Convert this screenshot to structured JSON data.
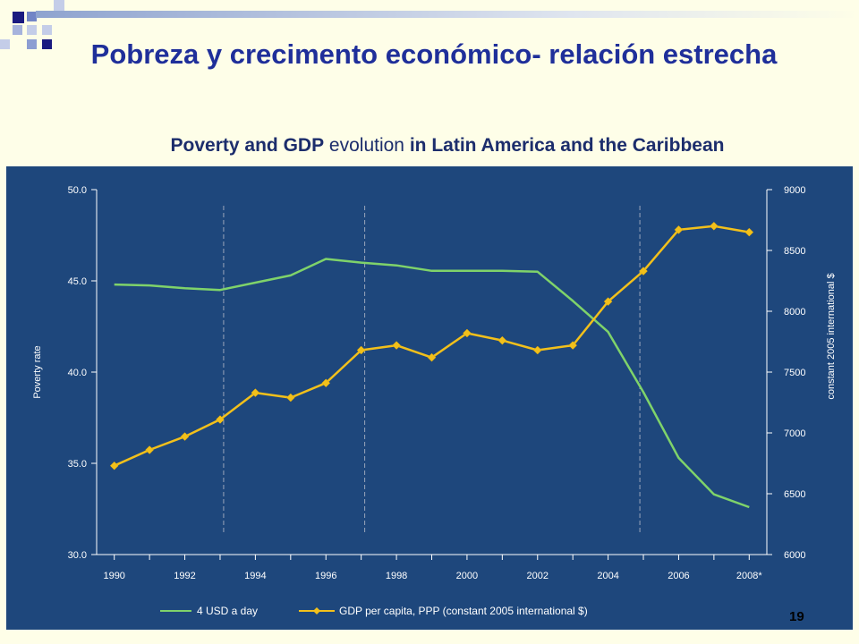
{
  "slide": {
    "title": "Pobreza y crecimento económico- relación estrecha",
    "subtitle_parts": [
      "Poverty and GDP",
      " evolution ",
      "in Latin America and the Caribbean"
    ],
    "page_number": "19",
    "background_color": "#fefee8",
    "title_color": "#1f2f9a",
    "decor_squares": [
      "navy",
      "blue",
      "light-blue"
    ]
  },
  "chart_data": {
    "type": "line",
    "background_color": "#1e477c",
    "x_tick_labels": [
      "1990",
      "1992",
      "1994",
      "1996",
      "1998",
      "2000",
      "2002",
      "2004",
      "2006",
      "2008*"
    ],
    "x_range": [
      1989.5,
      2008.5
    ],
    "left_axis": {
      "label": "Poverty rate",
      "ylim": [
        30,
        50
      ],
      "ticks": [
        "30.0",
        "35.0",
        "40.0",
        "45.0",
        "50.0"
      ]
    },
    "right_axis": {
      "label": "constant 2005 international $",
      "ylim": [
        6000,
        9000
      ],
      "ticks": [
        "6000",
        "6500",
        "7000",
        "7500",
        "8000",
        "8500",
        "9000"
      ]
    },
    "vertical_dashed_lines_x": [
      1993.1,
      1997.1,
      2004.9
    ],
    "series": [
      {
        "name": "4 USD a day",
        "axis": "left",
        "color": "#7fd36a",
        "marker": "none",
        "x": [
          1990,
          1991,
          1992,
          1993,
          1994,
          1995,
          1996,
          1997,
          1998,
          1999,
          2000,
          2001,
          2002,
          2003,
          2004,
          2005,
          2006,
          2007,
          2008
        ],
        "values": [
          44.8,
          44.75,
          44.6,
          44.5,
          44.9,
          45.3,
          46.2,
          46.0,
          45.85,
          45.55,
          45.55,
          45.55,
          45.5,
          43.9,
          42.2,
          38.9,
          35.3,
          33.3,
          32.6
        ]
      },
      {
        "name": "GDP per capita, PPP (constant 2005 international $)",
        "axis": "right",
        "color": "#f2c01b",
        "marker": "diamond",
        "x": [
          1990,
          1991,
          1992,
          1993,
          1994,
          1995,
          1996,
          1997,
          1998,
          1999,
          2000,
          2001,
          2002,
          2003,
          2004,
          2005,
          2006,
          2007,
          2008
        ],
        "values": [
          6730,
          6860,
          6970,
          7110,
          7330,
          7290,
          7410,
          7680,
          7720,
          7620,
          7820,
          7760,
          7680,
          7720,
          8080,
          8330,
          8670,
          8700,
          8650
        ]
      }
    ],
    "legend_position": "bottom"
  }
}
